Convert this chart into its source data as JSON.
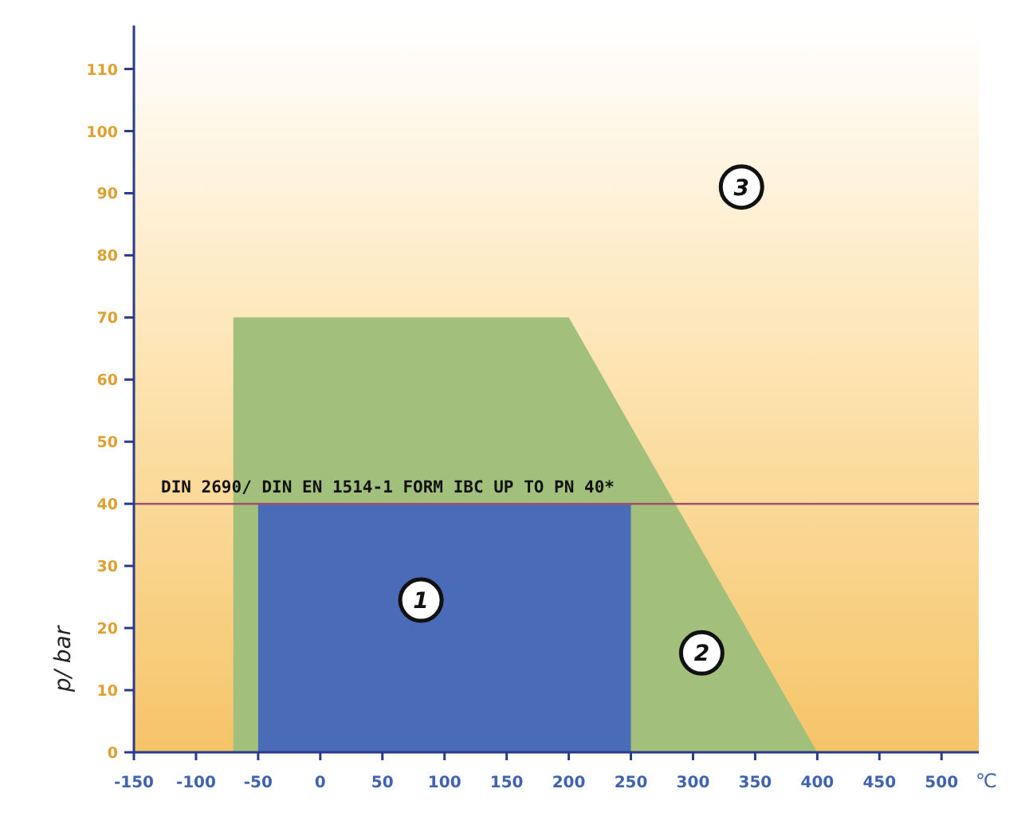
{
  "chart_data": {
    "type": "area",
    "xlabel": "℃",
    "ylabel": "p/ bar",
    "xlim": [
      -150,
      530
    ],
    "ylim": [
      0,
      117
    ],
    "xticks": [
      -150,
      -100,
      -50,
      0,
      50,
      100,
      150,
      200,
      250,
      300,
      350,
      400,
      450,
      500
    ],
    "yticks": [
      0,
      10,
      20,
      30,
      40,
      50,
      60,
      70,
      80,
      90,
      100,
      110
    ],
    "grid": false,
    "series": [
      {
        "color": "#a2c07c",
        "x": [
          -70,
          -70,
          200,
          400
        ],
        "values": [
          0,
          70,
          70,
          0
        ]
      },
      {
        "color": "#4a6cb8",
        "x": [
          -50,
          -50,
          250,
          250
        ],
        "values": [
          0,
          40,
          40,
          0
        ]
      }
    ],
    "ref_lines": [
      {
        "axis": "y",
        "value": 40,
        "label": "DIN 2690/ DIN EN 1514-1 FORM IBC UP TO PN 40*",
        "color": "#a0506e"
      }
    ],
    "annotations": [
      {
        "text": "1",
        "x": 81,
        "y": 24.5
      },
      {
        "text": "2",
        "x": 307,
        "y": 16
      },
      {
        "text": "3",
        "x": 339,
        "y": 91
      }
    ]
  }
}
